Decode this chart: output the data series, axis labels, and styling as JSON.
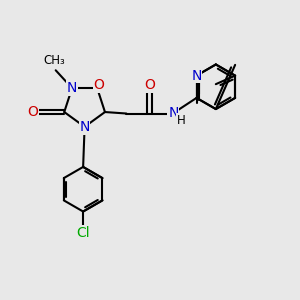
{
  "bg_color": "#e8e8e8",
  "bond_color": "#000000",
  "N_color": "#0000cc",
  "O_color": "#cc0000",
  "Cl_color": "#00aa00",
  "line_width": 1.5,
  "font_size": 10,
  "fig_size": [
    3.0,
    3.0
  ],
  "dpi": 100,
  "xlim": [
    0,
    10
  ],
  "ylim": [
    0,
    10
  ]
}
